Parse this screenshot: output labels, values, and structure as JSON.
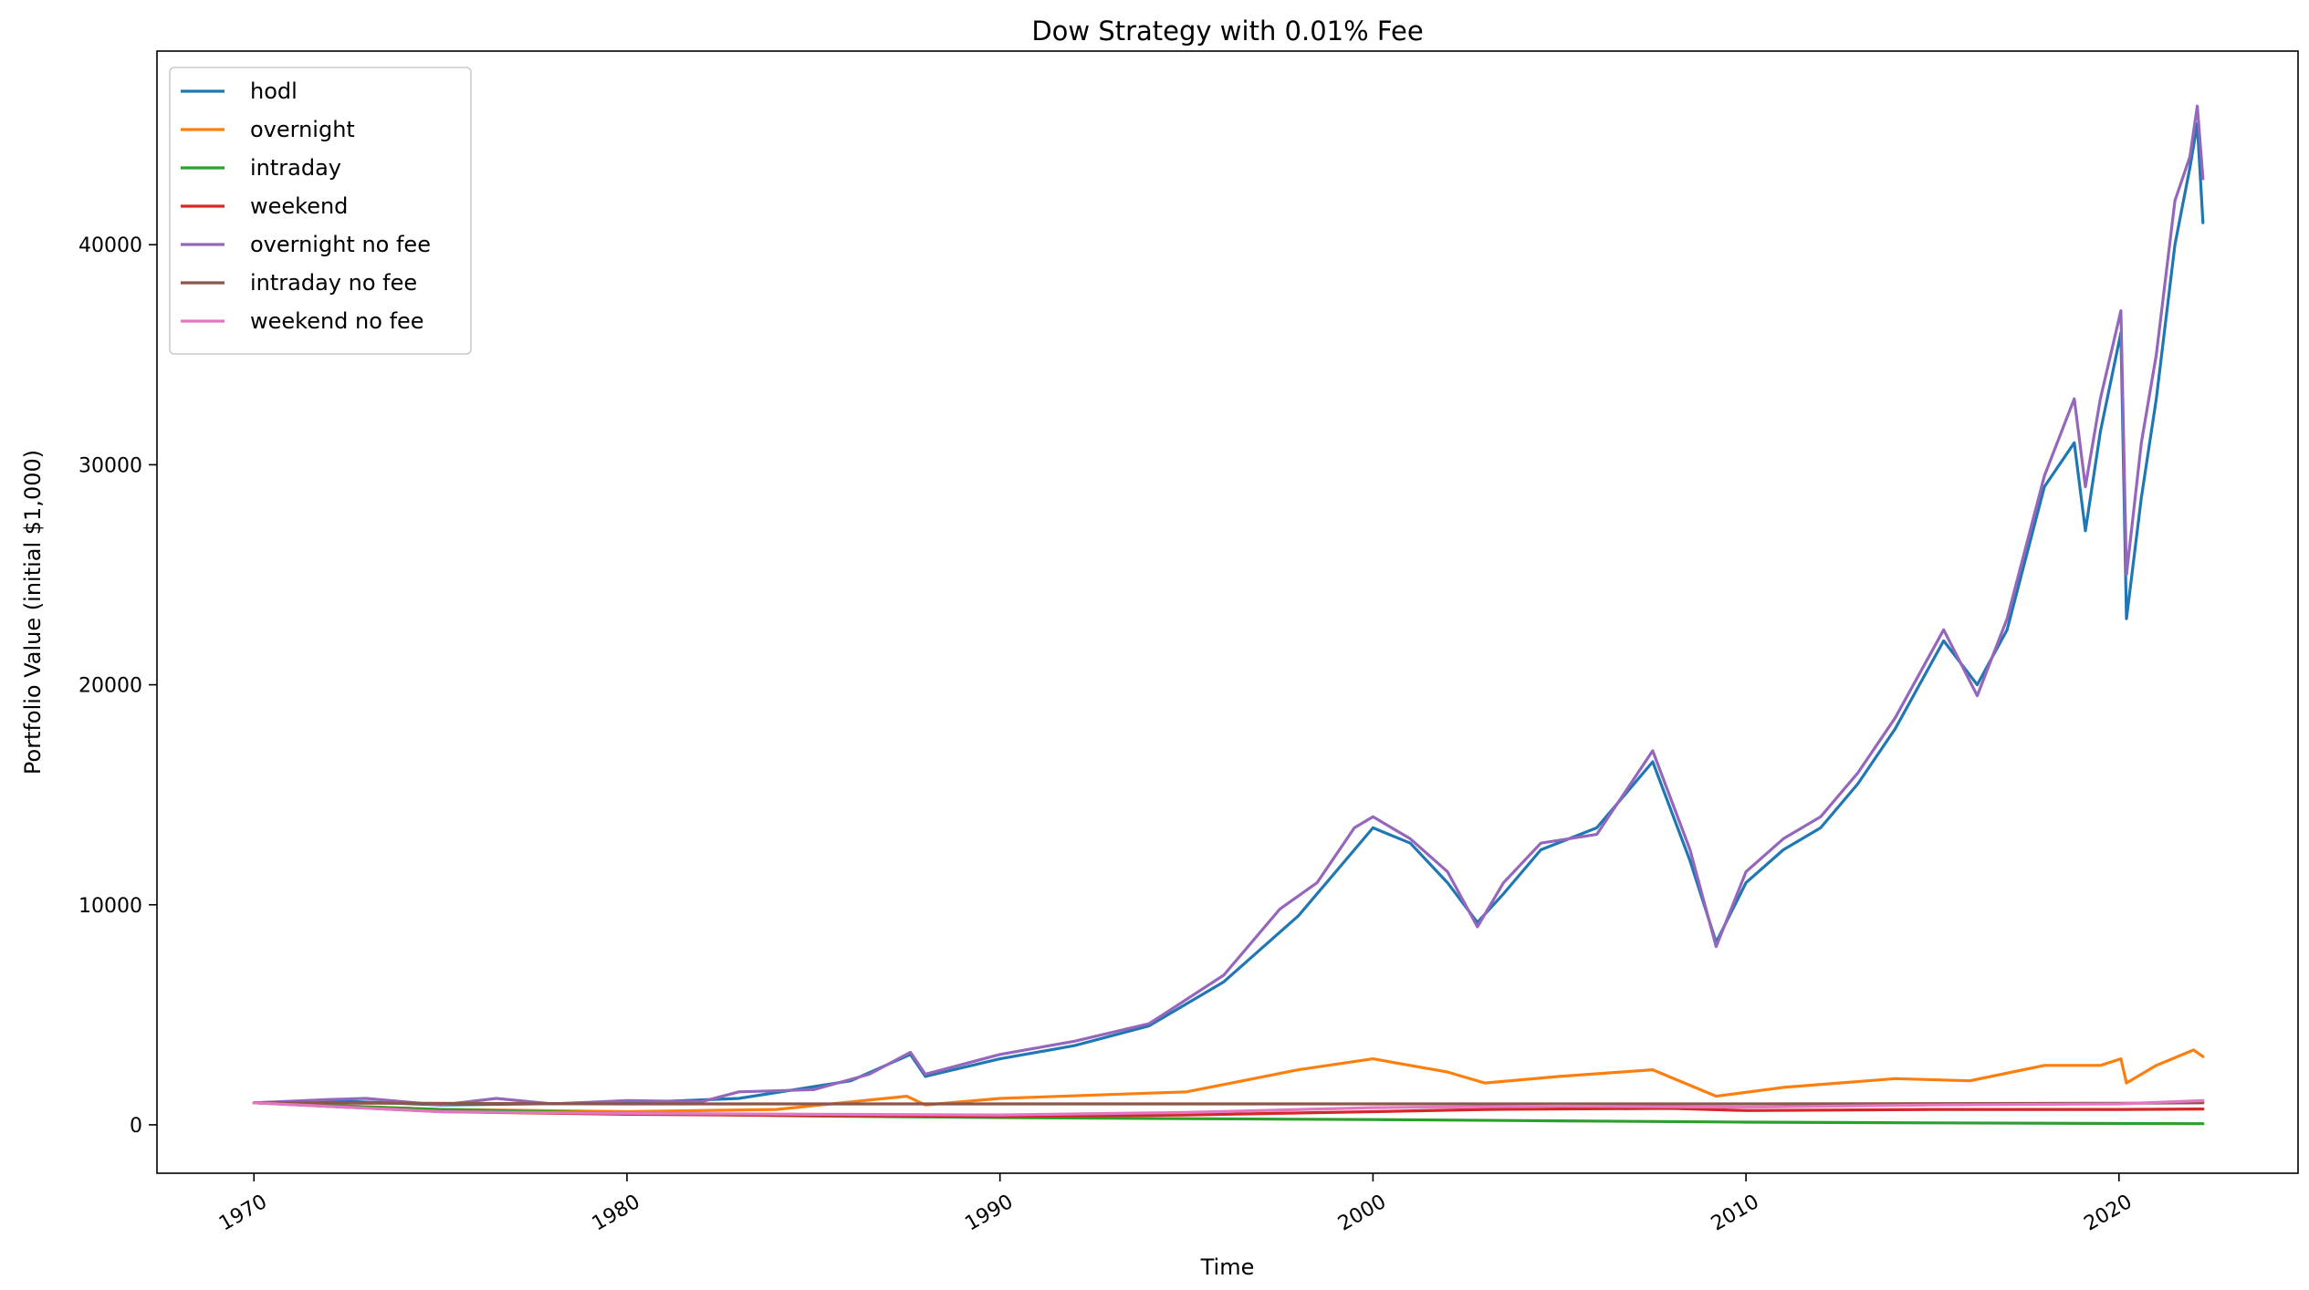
{
  "chart_data": {
    "type": "line",
    "title": "Dow Strategy with 0.01% Fee",
    "xlabel": "Time",
    "ylabel": "Portfolio Value (initial $1,000)",
    "xlim": [
      1967.4,
      2024.8
    ],
    "ylim": [
      -2200,
      48800
    ],
    "xticks": [
      1970,
      1980,
      1990,
      2000,
      2010,
      2020
    ],
    "yticks": [
      0,
      10000,
      20000,
      30000,
      40000
    ],
    "grid": false,
    "legend_position": "top-left",
    "series": [
      {
        "name": "hodl",
        "color": "#1f77b4",
        "points": [
          [
            1970,
            1000
          ],
          [
            1972,
            1100
          ],
          [
            1975,
            900
          ],
          [
            1980,
            1000
          ],
          [
            1983,
            1200
          ],
          [
            1986,
            2000
          ],
          [
            1987.6,
            3200
          ],
          [
            1988,
            2200
          ],
          [
            1990,
            3000
          ],
          [
            1992,
            3600
          ],
          [
            1994,
            4500
          ],
          [
            1996,
            6500
          ],
          [
            1998,
            9500
          ],
          [
            1999.5,
            12500
          ],
          [
            2000,
            13500
          ],
          [
            2001,
            12800
          ],
          [
            2002,
            11000
          ],
          [
            2002.8,
            9200
          ],
          [
            2003.5,
            10500
          ],
          [
            2004.5,
            12500
          ],
          [
            2006,
            13500
          ],
          [
            2007.5,
            16500
          ],
          [
            2008.5,
            12000
          ],
          [
            2009.2,
            8300
          ],
          [
            2010,
            11000
          ],
          [
            2011,
            12500
          ],
          [
            2012,
            13500
          ],
          [
            2013,
            15500
          ],
          [
            2014,
            18000
          ],
          [
            2015.3,
            22000
          ],
          [
            2016.2,
            20000
          ],
          [
            2017,
            22500
          ],
          [
            2018,
            29000
          ],
          [
            2018.8,
            31000
          ],
          [
            2019.1,
            27000
          ],
          [
            2019.5,
            31500
          ],
          [
            2020.05,
            36000
          ],
          [
            2020.2,
            23000
          ],
          [
            2020.6,
            28500
          ],
          [
            2021,
            33000
          ],
          [
            2021.5,
            40000
          ],
          [
            2021.9,
            43500
          ],
          [
            2022.1,
            45500
          ],
          [
            2022.25,
            41000
          ]
        ]
      },
      {
        "name": "overnight",
        "color": "#ff7f0e",
        "points": [
          [
            1970,
            1000
          ],
          [
            1975,
            700
          ],
          [
            1980,
            600
          ],
          [
            1984,
            700
          ],
          [
            1987.5,
            1300
          ],
          [
            1988,
            900
          ],
          [
            1990,
            1200
          ],
          [
            1995,
            1500
          ],
          [
            1998,
            2500
          ],
          [
            2000,
            3000
          ],
          [
            2002,
            2400
          ],
          [
            2003,
            1900
          ],
          [
            2005,
            2200
          ],
          [
            2007.5,
            2500
          ],
          [
            2009.2,
            1300
          ],
          [
            2011,
            1700
          ],
          [
            2014,
            2100
          ],
          [
            2016,
            2000
          ],
          [
            2018,
            2700
          ],
          [
            2019.5,
            2700
          ],
          [
            2020.05,
            3000
          ],
          [
            2020.2,
            1900
          ],
          [
            2021,
            2700
          ],
          [
            2022,
            3400
          ],
          [
            2022.25,
            3100
          ]
        ]
      },
      {
        "name": "intraday",
        "color": "#2ca02c",
        "points": [
          [
            1970,
            1000
          ],
          [
            1975,
            700
          ],
          [
            1980,
            520
          ],
          [
            1985,
            400
          ],
          [
            1990,
            330
          ],
          [
            1995,
            280
          ],
          [
            2000,
            240
          ],
          [
            2005,
            180
          ],
          [
            2010,
            120
          ],
          [
            2015,
            90
          ],
          [
            2020,
            60
          ],
          [
            2022.25,
            50
          ]
        ]
      },
      {
        "name": "weekend",
        "color": "#d62728",
        "points": [
          [
            1970,
            1000
          ],
          [
            1975,
            600
          ],
          [
            1980,
            480
          ],
          [
            1985,
            420
          ],
          [
            1990,
            380
          ],
          [
            1995,
            450
          ],
          [
            2000,
            600
          ],
          [
            2003,
            700
          ],
          [
            2008,
            750
          ],
          [
            2010,
            650
          ],
          [
            2015,
            700
          ],
          [
            2020,
            700
          ],
          [
            2022.25,
            720
          ]
        ]
      },
      {
        "name": "overnight no fee",
        "color": "#9467bd",
        "points": [
          [
            1970,
            1000
          ],
          [
            1972,
            1150
          ],
          [
            1973,
            1200
          ],
          [
            1975,
            900
          ],
          [
            1976.5,
            1200
          ],
          [
            1978,
            950
          ],
          [
            1980,
            1100
          ],
          [
            1982,
            1050
          ],
          [
            1983,
            1500
          ],
          [
            1985,
            1600
          ],
          [
            1986.5,
            2300
          ],
          [
            1987.6,
            3300
          ],
          [
            1988,
            2300
          ],
          [
            1990,
            3200
          ],
          [
            1992,
            3800
          ],
          [
            1994,
            4600
          ],
          [
            1996,
            6800
          ],
          [
            1997.5,
            9800
          ],
          [
            1998.5,
            11000
          ],
          [
            1999.5,
            13500
          ],
          [
            2000,
            14000
          ],
          [
            2001,
            13000
          ],
          [
            2002,
            11500
          ],
          [
            2002.8,
            9000
          ],
          [
            2003.5,
            11000
          ],
          [
            2004.5,
            12800
          ],
          [
            2006,
            13200
          ],
          [
            2007.5,
            17000
          ],
          [
            2008.5,
            12500
          ],
          [
            2009.2,
            8100
          ],
          [
            2010,
            11500
          ],
          [
            2011,
            13000
          ],
          [
            2012,
            14000
          ],
          [
            2013,
            16000
          ],
          [
            2014,
            18500
          ],
          [
            2015.3,
            22500
          ],
          [
            2016.2,
            19500
          ],
          [
            2017,
            23000
          ],
          [
            2018,
            29500
          ],
          [
            2018.8,
            33000
          ],
          [
            2019.1,
            29000
          ],
          [
            2019.5,
            33000
          ],
          [
            2020.05,
            37000
          ],
          [
            2020.2,
            25000
          ],
          [
            2020.6,
            31000
          ],
          [
            2021,
            35000
          ],
          [
            2021.5,
            42000
          ],
          [
            2021.9,
            44000
          ],
          [
            2022.1,
            46300
          ],
          [
            2022.25,
            43000
          ]
        ]
      },
      {
        "name": "intraday no fee",
        "color": "#8c564b",
        "points": [
          [
            1970,
            1000
          ],
          [
            1980,
            950
          ],
          [
            1990,
            950
          ],
          [
            2000,
            950
          ],
          [
            2010,
            950
          ],
          [
            2020,
            980
          ],
          [
            2022.25,
            1000
          ]
        ]
      },
      {
        "name": "weekend no fee",
        "color": "#e377c2",
        "points": [
          [
            1970,
            1000
          ],
          [
            1975,
            600
          ],
          [
            1980,
            520
          ],
          [
            1985,
            480
          ],
          [
            1990,
            450
          ],
          [
            1995,
            560
          ],
          [
            2000,
            780
          ],
          [
            2005,
            850
          ],
          [
            2010,
            800
          ],
          [
            2015,
            900
          ],
          [
            2020,
            950
          ],
          [
            2022.25,
            1100
          ]
        ]
      }
    ]
  }
}
